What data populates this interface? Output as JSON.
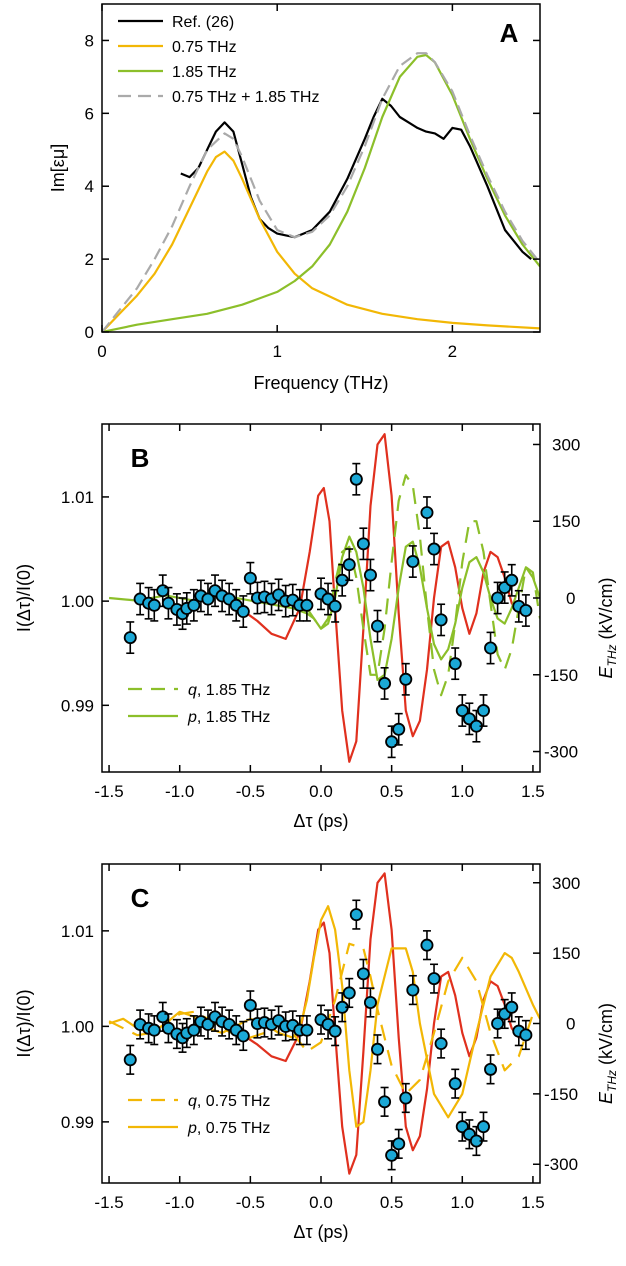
{
  "chart_data": [
    {
      "panel": "A",
      "type": "line",
      "xlabel": "Frequency (THz)",
      "ylabel": "Im[εμ]",
      "xlim": [
        0,
        2.5
      ],
      "ylim": [
        0,
        9
      ],
      "xticks": [
        "0",
        "1",
        "2"
      ],
      "yticks": [
        "0",
        "2",
        "4",
        "6",
        "8"
      ],
      "legend_position": "top-left",
      "series": [
        {
          "name": "Ref. (26)",
          "color": "#000000",
          "style": "solid",
          "x": [
            0.45,
            0.5,
            0.55,
            0.6,
            0.65,
            0.7,
            0.75,
            0.8,
            0.85,
            0.9,
            0.95,
            1.0,
            1.05,
            1.1,
            1.15,
            1.2,
            1.3,
            1.4,
            1.5,
            1.55,
            1.6,
            1.65,
            1.7,
            1.75,
            1.8,
            1.85,
            1.9,
            1.95,
            2.0,
            2.05,
            2.1,
            2.2,
            2.3,
            2.4,
            2.45
          ],
          "y": [
            4.35,
            4.25,
            4.5,
            5.0,
            5.5,
            5.75,
            5.5,
            4.6,
            3.7,
            3.1,
            2.85,
            2.7,
            2.65,
            2.6,
            2.7,
            2.8,
            3.3,
            4.2,
            5.3,
            5.9,
            6.4,
            6.2,
            5.9,
            5.75,
            5.6,
            5.5,
            5.45,
            5.3,
            5.6,
            5.55,
            5.1,
            4.0,
            2.8,
            2.2,
            2.0
          ]
        },
        {
          "name": "0.75 THz",
          "color": "#f2b705",
          "style": "solid",
          "x": [
            0,
            0.1,
            0.2,
            0.3,
            0.4,
            0.5,
            0.6,
            0.65,
            0.7,
            0.75,
            0.8,
            0.9,
            1.0,
            1.1,
            1.2,
            1.4,
            1.6,
            1.8,
            2.0,
            2.2,
            2.5
          ],
          "y": [
            0,
            0.5,
            1.0,
            1.6,
            2.4,
            3.4,
            4.4,
            4.8,
            4.95,
            4.7,
            4.2,
            3.1,
            2.2,
            1.6,
            1.2,
            0.75,
            0.5,
            0.35,
            0.25,
            0.18,
            0.1
          ]
        },
        {
          "name": "1.85 THz",
          "color": "#8cbf2a",
          "style": "solid",
          "x": [
            0,
            0.2,
            0.4,
            0.6,
            0.8,
            1.0,
            1.1,
            1.2,
            1.3,
            1.4,
            1.5,
            1.6,
            1.7,
            1.8,
            1.85,
            1.9,
            2.0,
            2.1,
            2.2,
            2.3,
            2.4,
            2.5
          ],
          "y": [
            0,
            0.2,
            0.35,
            0.5,
            0.75,
            1.1,
            1.4,
            1.8,
            2.4,
            3.3,
            4.5,
            5.9,
            7.0,
            7.55,
            7.6,
            7.4,
            6.5,
            5.3,
            4.2,
            3.2,
            2.4,
            1.8
          ]
        },
        {
          "name": "0.75 THz + 1.85 THz",
          "color": "#aaaaaa",
          "style": "dashed",
          "x": [
            0,
            0.1,
            0.2,
            0.3,
            0.4,
            0.5,
            0.6,
            0.7,
            0.75,
            0.8,
            0.9,
            1.0,
            1.1,
            1.2,
            1.3,
            1.4,
            1.5,
            1.6,
            1.7,
            1.8,
            1.85,
            1.9,
            2.0,
            2.1,
            2.2,
            2.3,
            2.4,
            2.5
          ],
          "y": [
            0,
            0.6,
            1.2,
            2.0,
            2.9,
            4.0,
            5.0,
            5.45,
            5.3,
            4.8,
            3.6,
            2.8,
            2.6,
            2.75,
            3.2,
            4.0,
            5.1,
            6.4,
            7.3,
            7.65,
            7.65,
            7.4,
            6.6,
            5.4,
            4.3,
            3.3,
            2.5,
            1.9
          ]
        }
      ]
    },
    {
      "panel": "B",
      "type": "scatter",
      "xlabel": "Δτ (ps)",
      "ylabel": "I(Δτ)/I(0)",
      "y2label": "E_THz (kV/cm)",
      "xlim": [
        -1.55,
        1.55
      ],
      "ylim": [
        0.9836,
        1.017
      ],
      "y2lim": [
        -340,
        340
      ],
      "xticks": [
        "-1.5",
        "-1.0",
        "-0.5",
        "0.0",
        "0.5",
        "1.0",
        "1.5"
      ],
      "yticks": [
        "0.99",
        "1.00",
        "1.01"
      ],
      "y2ticks": [
        "-300",
        "-150",
        "0",
        "150",
        "300"
      ],
      "legend_position": "bottom-left",
      "legend": [
        {
          "symbol": "q",
          "text": ", 1.85 THz",
          "color": "#8cbf2a",
          "style": "dashed"
        },
        {
          "symbol": "p",
          "text": ", 1.85 THz",
          "color": "#8cbf2a",
          "style": "solid"
        }
      ],
      "points": {
        "x": [
          -1.35,
          -1.28,
          -1.22,
          -1.18,
          -1.12,
          -1.08,
          -1.02,
          -0.98,
          -0.95,
          -0.9,
          -0.85,
          -0.8,
          -0.75,
          -0.7,
          -0.65,
          -0.6,
          -0.55,
          -0.5,
          -0.45,
          -0.4,
          -0.35,
          -0.3,
          -0.25,
          -0.2,
          -0.15,
          -0.1,
          0.0,
          0.05,
          0.1,
          0.15,
          0.2,
          0.25,
          0.3,
          0.35,
          0.4,
          0.45,
          0.5,
          0.55,
          0.6,
          0.65,
          0.75,
          0.8,
          0.85,
          0.95,
          1.0,
          1.05,
          1.1,
          1.15,
          1.2,
          1.25,
          1.3,
          1.35,
          1.4,
          1.45
        ],
        "y": [
          0.9965,
          1.0002,
          0.9998,
          0.9996,
          1.001,
          0.9998,
          0.9992,
          0.9988,
          0.9993,
          0.9996,
          1.0005,
          1.0002,
          1.001,
          1.0005,
          1.0002,
          0.9996,
          0.999,
          1.0022,
          1.0003,
          1.0004,
          1.0002,
          1.0006,
          1.0,
          1.0001,
          0.9996,
          0.9996,
          1.0007,
          1.0002,
          0.9995,
          1.002,
          1.0035,
          1.0117,
          1.0055,
          1.0025,
          0.9976,
          0.9921,
          0.9865,
          0.9877,
          0.9925,
          1.0038,
          1.0085,
          1.005,
          0.9982,
          0.994,
          0.9895,
          0.9887,
          0.988,
          0.9895,
          0.9955,
          1.0003,
          1.0013,
          1.002,
          0.9995,
          0.9991
        ],
        "err": 0.0015,
        "color": "#1ba8d6"
      },
      "series": [
        {
          "name": "red",
          "color": "#e0301e",
          "style": "solid",
          "x": [
            -0.55,
            -0.45,
            -0.35,
            -0.25,
            -0.15,
            -0.08,
            -0.02,
            0.02,
            0.06,
            0.1,
            0.15,
            0.2,
            0.25,
            0.3,
            0.35,
            0.4,
            0.45,
            0.5,
            0.55,
            0.6,
            0.65,
            0.7,
            0.75,
            0.8,
            0.85,
            0.9,
            0.95,
            1.0,
            1.05,
            1.1,
            1.15,
            1.2,
            1.25,
            1.3,
            1.35,
            1.4,
            1.45
          ],
          "y": [
            -25,
            -45,
            -70,
            -80,
            -20,
            90,
            200,
            215,
            150,
            -20,
            -220,
            -320,
            -280,
            -60,
            180,
            300,
            320,
            200,
            -30,
            -220,
            -270,
            -240,
            -140,
            0,
            100,
            110,
            60,
            -20,
            -70,
            -30,
            50,
            90,
            80,
            40,
            -10,
            -30,
            -25
          ]
        },
        {
          "name": "q, 1.85 THz",
          "color": "#8cbf2a",
          "style": "dashed",
          "x": [
            -0.1,
            -0.05,
            0.0,
            0.05,
            0.1,
            0.15,
            0.2,
            0.25,
            0.3,
            0.35,
            0.4,
            0.45,
            0.5,
            0.55,
            0.6,
            0.65,
            0.7,
            0.75,
            0.8,
            0.85,
            0.9,
            0.95,
            1.0,
            1.05,
            1.1,
            1.15,
            1.2,
            1.25,
            1.3,
            1.35,
            1.4,
            1.45,
            1.5,
            1.55
          ],
          "y": [
            -20,
            -40,
            -60,
            -40,
            30,
            90,
            100,
            40,
            -60,
            -150,
            -150,
            -60,
            70,
            190,
            240,
            220,
            120,
            -20,
            -140,
            -190,
            -150,
            -50,
            70,
            150,
            150,
            90,
            -10,
            -110,
            -140,
            -100,
            -20,
            60,
            50,
            -40
          ]
        },
        {
          "name": "p, 1.85 THz",
          "color": "#8cbf2a",
          "style": "solid",
          "x": [
            -1.5,
            -1.3,
            -1.1,
            -0.9,
            -0.7,
            -0.5,
            -0.4,
            -0.3,
            -0.2,
            -0.15,
            -0.1,
            -0.05,
            0.0,
            0.05,
            0.1,
            0.15,
            0.2,
            0.25,
            0.3,
            0.35,
            0.4,
            0.45,
            0.5,
            0.55,
            0.6,
            0.65,
            0.7,
            0.75,
            0.8,
            0.85,
            0.9,
            0.95,
            1.0,
            1.05,
            1.1,
            1.15,
            1.2,
            1.25,
            1.3,
            1.35,
            1.4,
            1.45,
            1.5,
            1.55
          ],
          "y": [
            0,
            -5,
            5,
            -5,
            5,
            -5,
            -10,
            -15,
            -20,
            -25,
            -30,
            -40,
            -60,
            -50,
            0,
            80,
            120,
            90,
            20,
            -80,
            -160,
            -150,
            -80,
            20,
            100,
            110,
            60,
            -20,
            -90,
            -120,
            -100,
            -50,
            20,
            70,
            80,
            50,
            0,
            -40,
            -50,
            -20,
            20,
            60,
            40,
            0
          ]
        }
      ]
    },
    {
      "panel": "C",
      "type": "scatter",
      "xlabel": "Δτ (ps)",
      "ylabel": "I(Δτ)/I(0)",
      "y2label": "E_THz (kV/cm)",
      "xlim": [
        -1.55,
        1.55
      ],
      "ylim": [
        0.9836,
        1.017
      ],
      "y2lim": [
        -340,
        340
      ],
      "xticks": [
        "-1.5",
        "-1.0",
        "-0.5",
        "0.0",
        "0.5",
        "1.0",
        "1.5"
      ],
      "yticks": [
        "0.99",
        "1.00",
        "1.01"
      ],
      "y2ticks": [
        "-300",
        "-150",
        "0",
        "150",
        "300"
      ],
      "legend_position": "bottom-left",
      "legend": [
        {
          "symbol": "q",
          "text": ", 0.75 THz",
          "color": "#f2b705",
          "style": "dashed"
        },
        {
          "symbol": "p",
          "text": ", 0.75 THz",
          "color": "#f2b705",
          "style": "solid"
        }
      ],
      "points": {
        "x": [
          -1.35,
          -1.28,
          -1.22,
          -1.18,
          -1.12,
          -1.08,
          -1.02,
          -0.98,
          -0.95,
          -0.9,
          -0.85,
          -0.8,
          -0.75,
          -0.7,
          -0.65,
          -0.6,
          -0.55,
          -0.5,
          -0.45,
          -0.4,
          -0.35,
          -0.3,
          -0.25,
          -0.2,
          -0.15,
          -0.1,
          0.0,
          0.05,
          0.1,
          0.15,
          0.2,
          0.25,
          0.3,
          0.35,
          0.4,
          0.45,
          0.5,
          0.55,
          0.6,
          0.65,
          0.75,
          0.8,
          0.85,
          0.95,
          1.0,
          1.05,
          1.1,
          1.15,
          1.2,
          1.25,
          1.3,
          1.35,
          1.4,
          1.45
        ],
        "y": [
          0.9965,
          1.0002,
          0.9998,
          0.9996,
          1.001,
          0.9998,
          0.9992,
          0.9988,
          0.9993,
          0.9996,
          1.0005,
          1.0002,
          1.001,
          1.0005,
          1.0002,
          0.9996,
          0.999,
          1.0022,
          1.0003,
          1.0004,
          1.0002,
          1.0006,
          1.0,
          1.0001,
          0.9996,
          0.9996,
          1.0007,
          1.0002,
          0.9995,
          1.002,
          1.0035,
          1.0117,
          1.0055,
          1.0025,
          0.9976,
          0.9921,
          0.9865,
          0.9877,
          0.9925,
          1.0038,
          1.0085,
          1.005,
          0.9982,
          0.994,
          0.9895,
          0.9887,
          0.988,
          0.9895,
          0.9955,
          1.0003,
          1.0013,
          1.002,
          0.9995,
          0.9991
        ],
        "err": 0.0015,
        "color": "#1ba8d6"
      },
      "series": [
        {
          "name": "red",
          "color": "#e0301e",
          "style": "solid",
          "x": [
            -0.55,
            -0.45,
            -0.35,
            -0.25,
            -0.15,
            -0.08,
            -0.02,
            0.02,
            0.06,
            0.1,
            0.15,
            0.2,
            0.25,
            0.3,
            0.35,
            0.4,
            0.45,
            0.5,
            0.55,
            0.6,
            0.65,
            0.7,
            0.75,
            0.8,
            0.85,
            0.9,
            0.95,
            1.0,
            1.05,
            1.1,
            1.15,
            1.2,
            1.25,
            1.3,
            1.35,
            1.4,
            1.45
          ],
          "y": [
            -25,
            -45,
            -70,
            -80,
            -20,
            90,
            200,
            215,
            150,
            -20,
            -220,
            -320,
            -280,
            -60,
            180,
            300,
            320,
            200,
            -30,
            -220,
            -270,
            -240,
            -140,
            0,
            100,
            110,
            60,
            -20,
            -70,
            -30,
            50,
            90,
            80,
            40,
            -10,
            -30,
            -25
          ]
        },
        {
          "name": "q, 0.75 THz",
          "color": "#f2b705",
          "style": "dashed",
          "x": [
            -1.5,
            -1.4,
            -1.3,
            -1.2,
            -1.1,
            -1.0,
            -0.9,
            -0.8,
            -0.7,
            -0.6,
            -0.5,
            -0.4,
            -0.3,
            -0.2,
            -0.1,
            0.0,
            0.1,
            0.2,
            0.3,
            0.35,
            0.4,
            0.5,
            0.6,
            0.7,
            0.8,
            0.9,
            1.0,
            1.1,
            1.2,
            1.3,
            1.4,
            1.5
          ],
          "y": [
            5,
            -10,
            -25,
            -20,
            0,
            20,
            25,
            10,
            -10,
            -25,
            -30,
            -20,
            0,
            -20,
            -60,
            -40,
            50,
            170,
            160,
            100,
            30,
            -90,
            -150,
            -120,
            -20,
            90,
            140,
            90,
            -20,
            -100,
            -70,
            20
          ]
        },
        {
          "name": "p, 0.75 THz",
          "color": "#f2b705",
          "style": "solid",
          "x": [
            -1.5,
            -1.4,
            -1.3,
            -1.2,
            -1.1,
            -1.0,
            -0.9,
            -0.8,
            -0.7,
            -0.6,
            -0.5,
            -0.4,
            -0.3,
            -0.2,
            -0.15,
            -0.1,
            -0.05,
            0.0,
            0.05,
            0.1,
            0.15,
            0.2,
            0.25,
            0.3,
            0.35,
            0.4,
            0.5,
            0.6,
            0.65,
            0.7,
            0.8,
            0.9,
            1.0,
            1.1,
            1.2,
            1.3,
            1.35,
            1.4,
            1.5,
            1.55
          ],
          "y": [
            0,
            10,
            -10,
            -20,
            0,
            25,
            15,
            -10,
            -20,
            -5,
            10,
            0,
            -20,
            -30,
            -10,
            50,
            140,
            220,
            250,
            200,
            80,
            -100,
            -220,
            -210,
            -100,
            40,
            160,
            160,
            110,
            0,
            -150,
            -200,
            -150,
            -20,
            100,
            150,
            140,
            110,
            40,
            10
          ]
        }
      ]
    }
  ]
}
